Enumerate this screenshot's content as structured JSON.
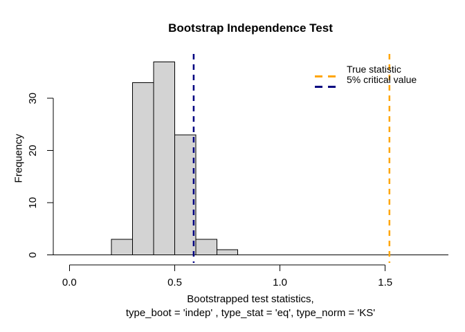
{
  "chart_data": {
    "type": "histogram",
    "title": "Bootstrap Independence Test",
    "ylabel": "Frequency",
    "xlabel_lines": [
      "Bootstrapped test statistics,",
      "type_boot = 'indep' , type_stat = 'eq', type_norm = 'KS'"
    ],
    "bins": {
      "start": 0.2,
      "bin_width": 0.1,
      "counts": [
        3,
        33,
        37,
        23,
        3,
        1
      ]
    },
    "x_ticks": [
      0.0,
      0.5,
      1.0,
      1.5
    ],
    "x_tick_labels": [
      "0.0",
      "0.5",
      "1.0",
      "1.5"
    ],
    "y_ticks": [
      0,
      10,
      20,
      30
    ],
    "y_tick_labels": [
      "0",
      "10",
      "20",
      "30"
    ],
    "xlim": [
      -0.08,
      1.8
    ],
    "ylim": [
      -1.5,
      38.5
    ],
    "grid": false,
    "bar_fill": "#d3d3d3",
    "bar_border": "#000000",
    "axis_color": "#000000",
    "vlines": [
      {
        "id": "true-statistic",
        "x": 1.52,
        "color": "#ffa500",
        "style": "dashed",
        "width": 2.5
      },
      {
        "id": "critical-value-5pct",
        "x": 0.59,
        "color": "#000080",
        "style": "dashed",
        "width": 2.5
      }
    ],
    "legend": {
      "position": "topright",
      "entries": [
        {
          "label": "True statistic",
          "color": "#ffa500",
          "line_style": "dashed"
        },
        {
          "label": "5% critical value",
          "color": "#000080",
          "line_style": "dashed"
        }
      ]
    }
  }
}
